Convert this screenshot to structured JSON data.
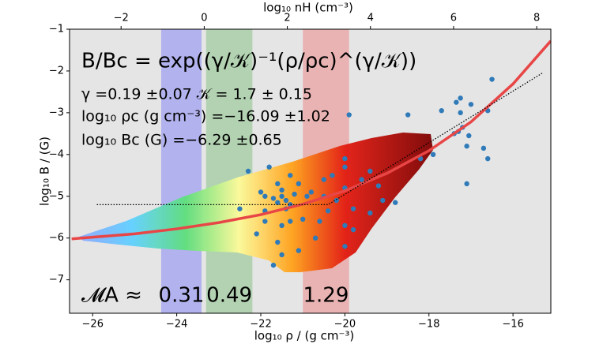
{
  "chart_data": {
    "type": "scatter",
    "x_label": "log₁₀ ρ / (g cm⁻³)",
    "y_label": "log₁₀ B / (G)",
    "top_x_label": "log₁₀ nH (cm⁻³)",
    "xlim": [
      -26.55,
      -15.1
    ],
    "ylim": [
      -7.8,
      -1
    ],
    "top_xlim": [
      -3.24,
      8.34
    ],
    "xticks": [
      {
        "value": -26,
        "label": "−26"
      },
      {
        "value": -24,
        "label": "−24"
      },
      {
        "value": -22,
        "label": "−22"
      },
      {
        "value": -20,
        "label": "−20"
      },
      {
        "value": -18,
        "label": "−18"
      },
      {
        "value": -16,
        "label": "−16"
      }
    ],
    "yticks": [
      {
        "value": -1,
        "label": "−1"
      },
      {
        "value": -2,
        "label": "−2"
      },
      {
        "value": -3,
        "label": "−3"
      },
      {
        "value": -4,
        "label": "−4"
      },
      {
        "value": -5,
        "label": "−5"
      },
      {
        "value": -6,
        "label": "−6"
      },
      {
        "value": -7,
        "label": "−7"
      }
    ],
    "top_xticks": [
      {
        "value": -2,
        "label": "−2"
      },
      0,
      2,
      4,
      6,
      8
    ],
    "bands": [
      {
        "xlim": [
          -24.37,
          -23.41
        ],
        "color": "#a9a9f0",
        "label": "0.31"
      },
      {
        "xlim": [
          -23.3,
          -22.2
        ],
        "color": "#a9cfa9",
        "label": "0.49"
      },
      {
        "xlim": [
          -21.0,
          -19.9
        ],
        "color": "#eaaaaa",
        "label": "1.29"
      }
    ],
    "mach_label": "𝓜A ≈",
    "annotations": [
      "B/Bc = exp((γ/𝒦)⁻¹(ρ/ρc)^(γ/𝒦))",
      "γ =0.19 ±0.07  𝒦 = 1.7 ± 0.15",
      "log₁₀ ρc (g cm⁻³) =−16.09 ±1.02",
      "log₁₀ Bc (G) =−6.29 ±0.65"
    ],
    "series": [
      {
        "type": "scatter",
        "color": "#2f7ab8",
        "x": [
          -16.5,
          -17.25,
          -17.35,
          -17.0,
          -17.7,
          -17.25,
          -16.6,
          -17.2,
          -17.3,
          -17.4,
          -17.05,
          -17.1,
          -16.7,
          -16.6,
          -17.1,
          -18.5,
          -17.9,
          -18.2,
          -19.9,
          -20.0,
          -20.0,
          -20.3,
          -20.5,
          -20.0,
          -19.6,
          -20.8,
          -20.5,
          -20.2,
          -19.8,
          -20.4,
          -21.0,
          -20.6,
          -20.0,
          -19.4,
          -19.8,
          -19.4,
          -19.2,
          -20.7,
          -20.0,
          -19.1,
          -18.8,
          -21.5,
          -21.4,
          -21.6,
          -21.3,
          -21.7,
          -21.5,
          -21.6,
          -21.4,
          -21.2,
          -21.9,
          -22.0,
          -22.3,
          -21.8,
          -21.3,
          -22.5,
          -21.9,
          -21.5,
          -22.1,
          -21.6,
          -21.5,
          -21.7,
          -21.1,
          -21.9,
          -21.3,
          -20.9,
          -21.1
        ],
        "values": [
          -2.2,
          -2.65,
          -2.75,
          -2.8,
          -2.95,
          -3.0,
          -2.95,
          -3.35,
          -3.45,
          -3.5,
          -3.55,
          -3.8,
          -3.85,
          -4.1,
          -4.7,
          -3.05,
          -4.0,
          -4.1,
          -3.05,
          -4.1,
          -4.3,
          -4.5,
          -4.6,
          -4.8,
          -4.6,
          -4.9,
          -5.0,
          -5.1,
          -5.3,
          -5.35,
          -5.55,
          -5.6,
          -5.7,
          -5.4,
          -5.8,
          -4.4,
          -4.75,
          -6.0,
          -6.2,
          -5.1,
          -5.15,
          -5.0,
          -5.1,
          -5.15,
          -5.2,
          -5.05,
          -4.85,
          -4.7,
          -5.3,
          -4.95,
          -5.0,
          -4.9,
          -4.4,
          -4.3,
          -4.5,
          -5.3,
          -5.6,
          -5.7,
          -5.9,
          -6.1,
          -6.4,
          -6.65,
          -6.3,
          -5.35,
          -5.6,
          -5.0,
          -4.7
        ]
      },
      {
        "type": "line",
        "color": "#e84646",
        "style": "solid",
        "x": [
          -26.5,
          -25,
          -24,
          -23,
          -22,
          -21,
          -20,
          -19,
          -18,
          -17,
          -16,
          -15.1
        ],
        "values": [
          -6.02,
          -5.9,
          -5.78,
          -5.63,
          -5.44,
          -5.19,
          -4.87,
          -4.45,
          -3.91,
          -3.22,
          -2.31,
          -1.28
        ]
      },
      {
        "type": "line",
        "color": "#000000",
        "style": "dotted",
        "x": [
          -25.9,
          -20.4,
          -15.3
        ],
        "values": [
          -5.2,
          -5.2,
          -2.05
        ]
      }
    ]
  }
}
